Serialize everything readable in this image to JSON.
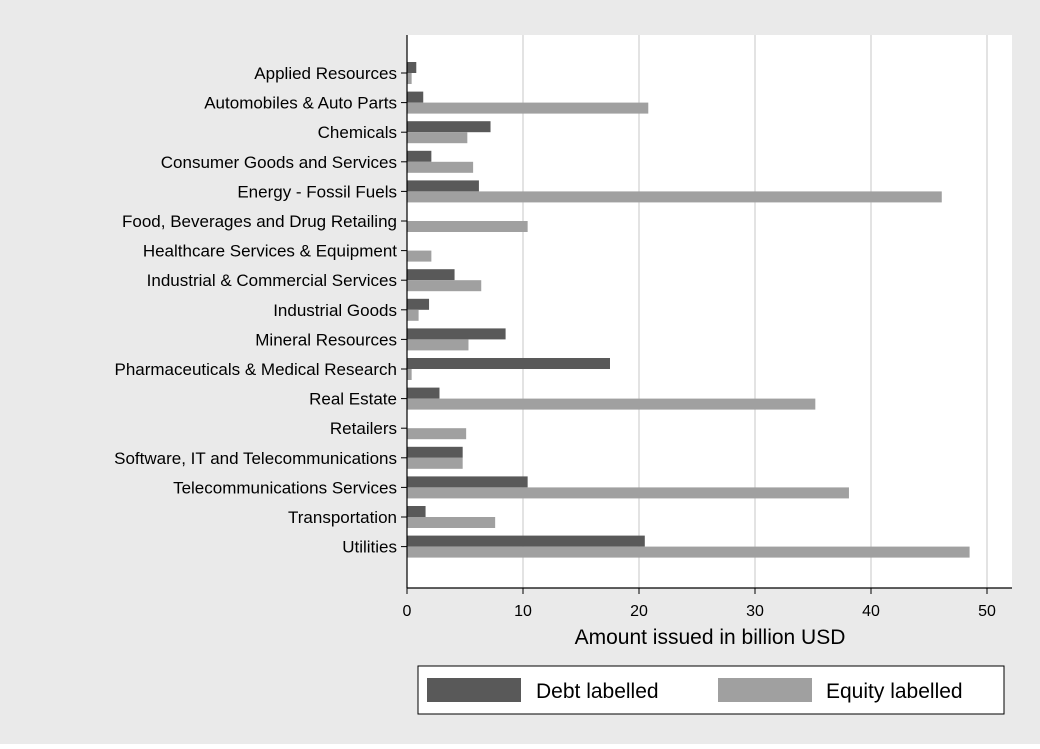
{
  "chart_data": {
    "type": "bar",
    "orientation": "horizontal",
    "categories": [
      "Applied Resources",
      "Automobiles & Auto Parts",
      "Chemicals",
      "Consumer Goods and Services",
      "Energy - Fossil Fuels",
      "Food, Beverages and Drug Retailing",
      "Healthcare Services & Equipment",
      "Industrial & Commercial Services",
      "Industrial Goods",
      "Mineral Resources",
      "Pharmaceuticals & Medical Research",
      "Real Estate",
      "Retailers",
      "Software, IT and Telecommunications",
      "Telecommunications Services",
      "Transportation",
      "Utilities"
    ],
    "series": [
      {
        "name": "Debt labelled",
        "color": "#595959",
        "values": [
          0.8,
          1.4,
          7.2,
          2.1,
          6.2,
          0,
          0,
          4.1,
          1.9,
          8.5,
          17.5,
          2.8,
          0,
          4.8,
          10.4,
          1.6,
          20.5
        ]
      },
      {
        "name": "Equity labelled",
        "color": "#a0a0a0",
        "values": [
          0.4,
          20.8,
          5.2,
          5.7,
          46.1,
          10.4,
          2.1,
          6.4,
          1.0,
          5.3,
          0.4,
          35.2,
          5.1,
          4.8,
          38.1,
          7.6,
          48.5
        ]
      }
    ],
    "xlabel": "Amount issued in billion USD",
    "ylabel": "",
    "title": "",
    "xlim": [
      0,
      52
    ],
    "xticks": [
      0,
      10,
      20,
      30,
      40,
      50
    ],
    "grid": true,
    "legend_position": "bottom",
    "colors": {
      "outer_background": "#eaeaea",
      "plot_background": "#ffffff",
      "grid": "#e3e3e3",
      "axis": "#000000"
    }
  }
}
